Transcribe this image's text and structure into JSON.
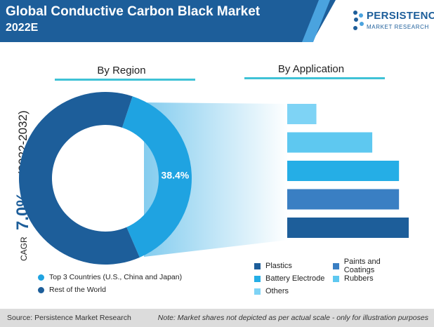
{
  "header": {
    "title_line1": "Global Conductive Carbon Black Market",
    "title_line2": "2022E"
  },
  "logo": {
    "name": "PERSISTENCE",
    "sub": "MARKET RESEARCH"
  },
  "tabs": {
    "region": "By Region",
    "application": "By Application"
  },
  "cagr": {
    "label": "CAGR",
    "value": "7.0%",
    "period": "(2022-2032)"
  },
  "chart_data": [
    {
      "type": "pie",
      "title": "By Region",
      "slices": [
        {
          "name": "Top 3 Countries (U.S., China and Japan)",
          "value": 38.4,
          "label": "38.4%",
          "color": "#1fa3e1"
        },
        {
          "name": "Rest of the World",
          "value": 61.6,
          "label": "",
          "color": "#1d5e9a"
        }
      ],
      "legend_placement": "bottom-left"
    },
    {
      "type": "bar",
      "orientation": "horizontal",
      "title": "By Application",
      "categories": [
        "Others",
        "Rubbers",
        "Battery Electrode",
        "Paints and Coatings",
        "Plastics"
      ],
      "values": [
        12,
        35,
        46,
        46,
        50
      ],
      "colors": [
        "#7ed3f5",
        "#5ec8f0",
        "#25aee6",
        "#3a7fc3",
        "#1d5e9a"
      ],
      "legend_placement": "bottom-right",
      "note": "Market shares not depicted as per actual scale"
    }
  ],
  "legend_left": [
    {
      "label": "Top 3 Countries (U.S., China and Japan)",
      "color": "#1fa3e1"
    },
    {
      "label": "Rest of the World",
      "color": "#1d5e9a"
    }
  ],
  "legend_right": [
    {
      "label": "Plastics",
      "color": "#1d5e9a"
    },
    {
      "label": "Paints and Coatings",
      "color": "#3a7fc3"
    },
    {
      "label": "Battery Electrode",
      "color": "#25aee6"
    },
    {
      "label": "Rubbers",
      "color": "#5ec8f0"
    },
    {
      "label": "Others",
      "color": "#7ed3f5"
    }
  ],
  "footer": {
    "source": "Source: Persistence Market Research",
    "note": "Note: Market shares not depicted as per actual scale - only for illustration purposes"
  }
}
